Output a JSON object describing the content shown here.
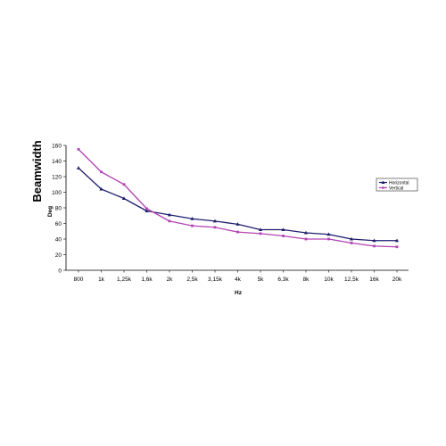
{
  "chart_data": {
    "type": "line",
    "title": "Beamwidth",
    "xlabel": "Hz",
    "ylabel": "Deg",
    "ylim": [
      0,
      160
    ],
    "yticks": [
      "0",
      "20",
      "40",
      "60",
      "80",
      "100",
      "120",
      "140",
      "160"
    ],
    "categories": [
      "800",
      "1k",
      "1,25k",
      "1,6k",
      "2k",
      "2,5k",
      "3,15k",
      "4k",
      "5k",
      "6,3k",
      "8k",
      "10k",
      "12,5k",
      "16k",
      "20k"
    ],
    "grid": false,
    "legend_position": "right",
    "series": [
      {
        "name": "Horizontal",
        "color": "#1f1f6e",
        "marker": "triangle",
        "values": [
          131,
          104,
          92,
          76,
          71,
          66,
          63,
          59,
          52,
          52,
          48,
          46,
          40,
          38,
          38
        ]
      },
      {
        "name": "Vertical",
        "color": "#b343b3",
        "marker": "square",
        "values": [
          155,
          126,
          110,
          79,
          63,
          57,
          55,
          49,
          47,
          44,
          40,
          40,
          35,
          31,
          30
        ]
      }
    ]
  }
}
